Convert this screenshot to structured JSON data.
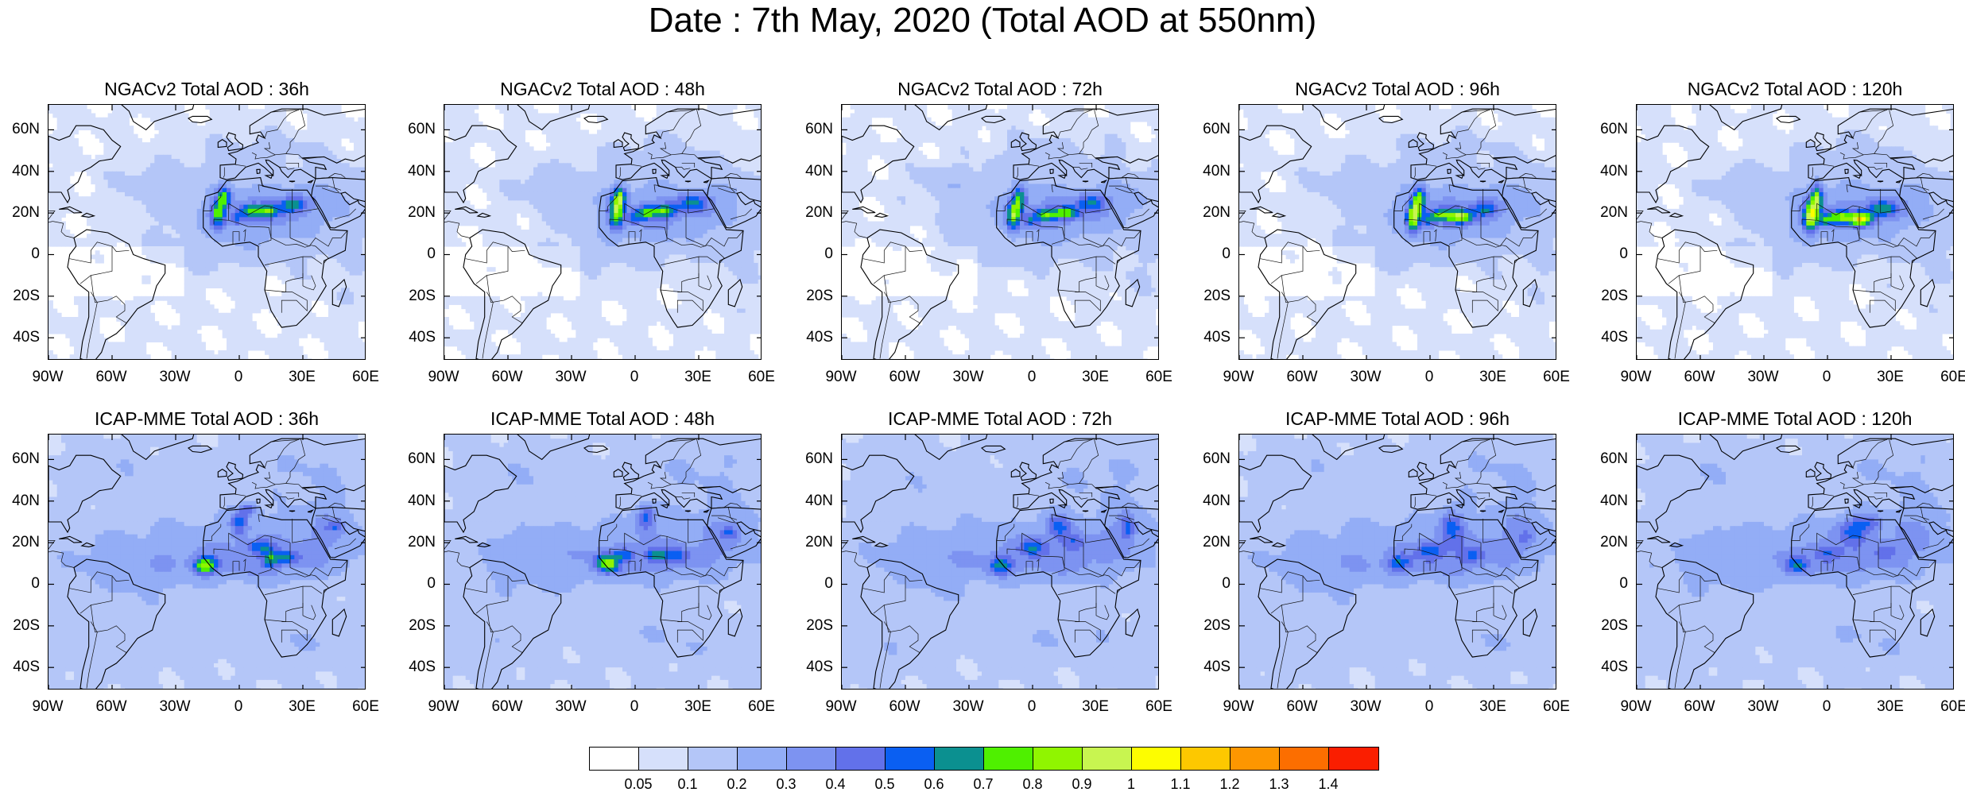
{
  "title": "Date : 7th May, 2020 (Total AOD at 550nm)",
  "lat_labels": [
    "60N",
    "40N",
    "20N",
    "0",
    "20S",
    "40S"
  ],
  "lon_labels": [
    "90W",
    "60W",
    "30W",
    "0",
    "30E",
    "60E"
  ],
  "panels": [
    {
      "title": "NGACv2 Total AOD : 36h",
      "model": "NGACv2",
      "lead": "36h"
    },
    {
      "title": "NGACv2 Total AOD : 48h",
      "model": "NGACv2",
      "lead": "48h"
    },
    {
      "title": "NGACv2 Total AOD : 72h",
      "model": "NGACv2",
      "lead": "72h"
    },
    {
      "title": "NGACv2 Total AOD : 96h",
      "model": "NGACv2",
      "lead": "96h"
    },
    {
      "title": "NGACv2 Total AOD : 120h",
      "model": "NGACv2",
      "lead": "120h"
    },
    {
      "title": "ICAP-MME Total AOD : 36h",
      "model": "ICAP-MME",
      "lead": "36h"
    },
    {
      "title": "ICAP-MME Total AOD : 48h",
      "model": "ICAP-MME",
      "lead": "48h"
    },
    {
      "title": "ICAP-MME Total AOD : 72h",
      "model": "ICAP-MME",
      "lead": "72h"
    },
    {
      "title": "ICAP-MME Total AOD : 96h",
      "model": "ICAP-MME",
      "lead": "96h"
    },
    {
      "title": "ICAP-MME Total AOD : 120h",
      "model": "ICAP-MME",
      "lead": "120h"
    }
  ],
  "colorbar": {
    "labels": [
      "0.05",
      "0.1",
      "0.2",
      "0.3",
      "0.4",
      "0.5",
      "0.6",
      "0.7",
      "0.8",
      "0.9",
      "1",
      "1.1",
      "1.2",
      "1.3",
      "1.4"
    ],
    "colors": [
      "#ffffff",
      "#d6e0fb",
      "#b4c6f8",
      "#93adf6",
      "#7d93f1",
      "#6271ea",
      "#0a5ff2",
      "#0b9090",
      "#4ff000",
      "#90f500",
      "#c8f550",
      "#fdfd00",
      "#fdc800",
      "#fd9600",
      "#fc6e00",
      "#fa1e00"
    ]
  }
}
